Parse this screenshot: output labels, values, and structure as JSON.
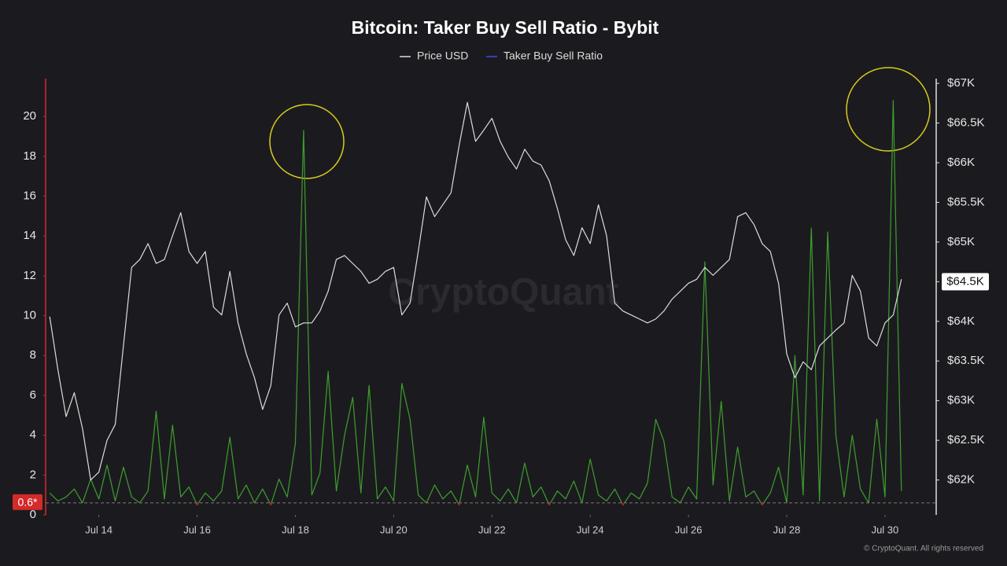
{
  "chart_data": {
    "type": "line",
    "title": "Bitcoin: Taker Buy Sell Ratio - Bybit",
    "watermark": "CryptoQuant",
    "credit": "© CryptoQuant. All rights reserved",
    "x": [
      0,
      4,
      8,
      12,
      16,
      20,
      24,
      28,
      32,
      36,
      40,
      44,
      48,
      52,
      56,
      60,
      64,
      68,
      72,
      76,
      80,
      84,
      88,
      92,
      96,
      100,
      104,
      108,
      112,
      116,
      120,
      124,
      128,
      132,
      136,
      140,
      144,
      148,
      152,
      156,
      160,
      164,
      168,
      172,
      176,
      180,
      184,
      188,
      192,
      196,
      200,
      204,
      208,
      212,
      216,
      220,
      224,
      228,
      232,
      236,
      240,
      244,
      248,
      252,
      256,
      260,
      264,
      268,
      272,
      276,
      280,
      284,
      288,
      292,
      296,
      300,
      304,
      308,
      312,
      316,
      320,
      324,
      328,
      332,
      336,
      340,
      344,
      348,
      352,
      356,
      360,
      364,
      368,
      372,
      376,
      380,
      384,
      388,
      392,
      396,
      400,
      404,
      408,
      412,
      416
    ],
    "xlim": [
      -2,
      433
    ],
    "xticks": [
      {
        "value": 24,
        "label": "Jul 14"
      },
      {
        "value": 72,
        "label": "Jul 16"
      },
      {
        "value": 120,
        "label": "Jul 18"
      },
      {
        "value": 168,
        "label": "Jul 20"
      },
      {
        "value": 216,
        "label": "Jul 22"
      },
      {
        "value": 264,
        "label": "Jul 24"
      },
      {
        "value": 312,
        "label": "Jul 26"
      },
      {
        "value": 360,
        "label": "Jul 28"
      },
      {
        "value": 408,
        "label": "Jul 30"
      }
    ],
    "ylim": [
      0,
      21.9
    ],
    "yticks": [
      0,
      2,
      4,
      6,
      8,
      10,
      12,
      14,
      16,
      18,
      20
    ],
    "y2lim": [
      61560,
      67060
    ],
    "y2ticks": [
      {
        "value": 62000,
        "label": "$62K"
      },
      {
        "value": 62500,
        "label": "$62.5K"
      },
      {
        "value": 63000,
        "label": "$63K"
      },
      {
        "value": 63500,
        "label": "$63.5K"
      },
      {
        "value": 64000,
        "label": "$64K"
      },
      {
        "value": 64500,
        "label": "$64.5K"
      },
      {
        "value": 65000,
        "label": "$65K"
      },
      {
        "value": 65500,
        "label": "$65.5K"
      },
      {
        "value": 66000,
        "label": "$66K"
      },
      {
        "value": 66500,
        "label": "$66.5K"
      },
      {
        "value": 67000,
        "label": "$67K"
      }
    ],
    "threshold": {
      "value": 0.6,
      "label": "0.6*"
    },
    "current_price": {
      "value": 64500,
      "label": "$64.5K"
    },
    "above_color": "#3f9e2e",
    "below_color": "#d32a2a",
    "grid": false,
    "series": [
      {
        "name": "Price USD",
        "color": "#dcdcdc",
        "axis": "y2",
        "values": [
          64060,
          63390,
          62800,
          63100,
          62650,
          62000,
          62100,
          62500,
          62700,
          63690,
          64680,
          64780,
          64980,
          64730,
          64780,
          65080,
          65370,
          64880,
          64730,
          64880,
          64180,
          64080,
          64630,
          63980,
          63590,
          63290,
          62890,
          63190,
          64080,
          64230,
          63930,
          63980,
          63980,
          64130,
          64380,
          64780,
          64830,
          64730,
          64630,
          64480,
          64530,
          64630,
          64680,
          64080,
          64230,
          64880,
          65570,
          65320,
          65470,
          65620,
          66220,
          66760,
          66270,
          66410,
          66560,
          66270,
          66070,
          65920,
          66170,
          66020,
          65970,
          65770,
          65420,
          65030,
          64830,
          65180,
          64980,
          65470,
          65080,
          64230,
          64130,
          64080,
          64030,
          63980,
          64030,
          64130,
          64280,
          64380,
          64480,
          64530,
          64680,
          64580,
          64680,
          64780,
          65320,
          65370,
          65220,
          64980,
          64880,
          64480,
          63590,
          63290,
          63490,
          63390,
          63690,
          63790,
          63890,
          63980,
          64580,
          64380,
          63790,
          63690,
          63980,
          64080,
          64530
        ]
      },
      {
        "name": "Taker Buy Sell Ratio",
        "color": "#4b4bd8",
        "values": [
          1.1,
          0.7,
          0.9,
          1.3,
          0.6,
          1.8,
          0.8,
          2.5,
          0.7,
          2.4,
          0.9,
          0.6,
          1.2,
          5.2,
          0.8,
          4.5,
          0.9,
          1.4,
          0.5,
          1.1,
          0.7,
          1.2,
          3.9,
          0.8,
          1.5,
          0.6,
          1.3,
          0.5,
          1.8,
          0.9,
          3.6,
          19.3,
          1.0,
          2.1,
          7.2,
          1.2,
          4.0,
          5.9,
          1.1,
          6.5,
          0.8,
          1.4,
          0.7,
          6.6,
          4.8,
          1.0,
          0.6,
          1.5,
          0.8,
          1.2,
          0.5,
          2.5,
          0.9,
          4.9,
          1.1,
          0.7,
          1.3,
          0.6,
          2.6,
          0.9,
          1.4,
          0.5,
          1.2,
          0.8,
          1.7,
          0.6,
          2.8,
          1.0,
          0.7,
          1.3,
          0.5,
          1.1,
          0.8,
          1.6,
          4.8,
          3.7,
          0.9,
          0.6,
          1.4,
          0.8,
          12.7,
          1.5,
          5.7,
          0.7,
          3.4,
          0.9,
          1.2,
          0.5,
          1.1,
          2.4,
          0.6,
          8.0,
          1.0,
          14.4,
          0.7,
          14.2,
          4.0,
          0.9,
          4.0,
          1.3,
          0.6,
          4.8,
          0.9,
          20.8,
          1.2
        ]
      }
    ]
  }
}
